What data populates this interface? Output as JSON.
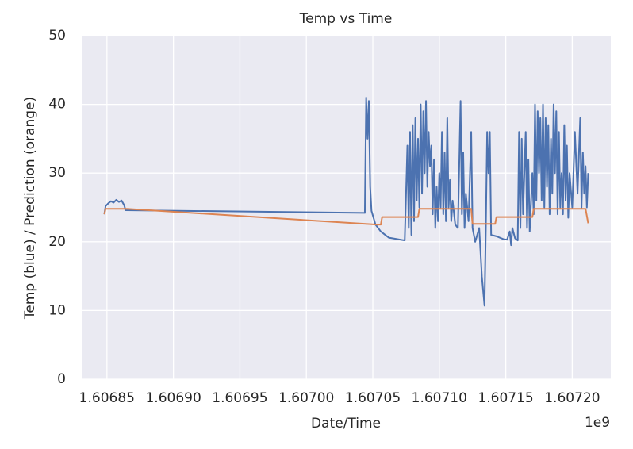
{
  "chart_data": {
    "type": "line",
    "title": "Temp vs Time",
    "xlabel": "Date/Time",
    "ylabel": "Temp (blue) / Prediction (orange)",
    "x_offset_label": "1e9",
    "xlim": [
      1.606831,
      1.607229
    ],
    "ylim": [
      0,
      50
    ],
    "xticks": [
      1.60685,
      {
        "value": 1.6069,
        "label": "1.60690"
      },
      1.60695,
      {
        "value": 1.607,
        "label": "1.60700"
      },
      1.60705,
      {
        "value": 1.6071,
        "label": "1.60710"
      },
      1.60715,
      {
        "value": 1.6072,
        "label": "1.60720"
      }
    ],
    "yticks": [
      0,
      10,
      20,
      30,
      40,
      50
    ],
    "grid": true,
    "series": [
      {
        "color": "#4c72b0",
        "x": [
          1.606848,
          1.606849,
          1.606851,
          1.606853,
          1.606855,
          1.606857,
          1.606859,
          1.606861,
          1.606863,
          1.606864,
          1.607044,
          1.607045,
          1.607046,
          1.607047,
          1.607048,
          1.607049,
          1.607052,
          1.607056,
          1.607062,
          1.607074,
          1.607076,
          1.607077,
          1.607078,
          1.607079,
          1.60708,
          1.607081,
          1.607082,
          1.607083,
          1.607084,
          1.607085,
          1.607086,
          1.607087,
          1.607088,
          1.607089,
          1.60709,
          1.607091,
          1.607092,
          1.607093,
          1.607094,
          1.607095,
          1.607096,
          1.607097,
          1.607098,
          1.607099,
          1.6071,
          1.607101,
          1.607102,
          1.607103,
          1.607104,
          1.607105,
          1.607106,
          1.607107,
          1.607108,
          1.607109,
          1.60711,
          1.607112,
          1.607114,
          1.607116,
          1.607117,
          1.607118,
          1.607119,
          1.60712,
          1.607122,
          1.607124,
          1.607125,
          1.607127,
          1.60713,
          1.607132,
          1.607134,
          1.607135,
          1.607136,
          1.607137,
          1.607138,
          1.607139,
          1.607143,
          1.607148,
          1.607151,
          1.607153,
          1.607154,
          1.607155,
          1.607157,
          1.607159,
          1.60716,
          1.607161,
          1.607162,
          1.607163,
          1.607165,
          1.607166,
          1.607167,
          1.607168,
          1.60717,
          1.607171,
          1.607172,
          1.607173,
          1.607174,
          1.607175,
          1.607176,
          1.607177,
          1.607178,
          1.607179,
          1.60718,
          1.607181,
          1.607182,
          1.607183,
          1.607184,
          1.607185,
          1.607186,
          1.607187,
          1.607188,
          1.607189,
          1.60719,
          1.607191,
          1.607192,
          1.607193,
          1.607194,
          1.607195,
          1.607196,
          1.607197,
          1.607198,
          1.6072,
          1.607202,
          1.607204,
          1.607206,
          1.607207,
          1.607208,
          1.607209,
          1.60721,
          1.607211,
          1.607212
        ],
        "values": [
          24.0,
          25.2,
          25.6,
          25.9,
          25.7,
          26.1,
          25.8,
          26.0,
          25.3,
          24.6,
          24.2,
          41.0,
          35,
          40.5,
          28,
          24.5,
          22.5,
          21.5,
          20.6,
          20.2,
          34,
          22,
          36,
          21,
          37,
          23,
          38,
          26,
          35,
          25,
          40,
          27,
          39,
          30,
          40.5,
          28,
          36,
          31,
          34,
          24,
          32,
          22,
          28,
          23,
          30,
          25,
          36,
          24,
          33,
          23,
          38,
          25,
          29,
          23,
          26,
          22.5,
          22,
          40.5,
          24,
          33,
          22,
          27,
          23,
          36,
          22,
          20,
          22,
          15,
          10.7,
          22,
          36,
          30,
          36,
          21,
          20.8,
          20.4,
          20.3,
          21.5,
          19.5,
          22,
          20.5,
          20.2,
          36,
          22,
          35,
          24,
          36,
          22,
          32,
          21.5,
          30,
          24,
          40,
          26,
          39,
          30,
          38,
          26,
          40,
          25,
          38,
          28,
          37,
          24,
          35,
          27,
          40,
          30,
          39,
          24,
          36,
          25,
          30,
          24,
          37,
          26,
          34,
          23.5,
          30,
          25,
          36,
          27,
          38,
          25,
          33,
          27,
          31,
          25,
          30
        ]
      },
      {
        "color": "#dd8452",
        "x": [
          1.606848,
          1.606849,
          1.606865,
          1.607053,
          1.607056,
          1.607057,
          1.607084,
          1.607085,
          1.607124,
          1.607125,
          1.607142,
          1.607143,
          1.60717,
          1.607171,
          1.60721,
          1.607212
        ],
        "values": [
          24.0,
          24.8,
          24.8,
          22.5,
          22.5,
          23.6,
          23.6,
          24.8,
          24.8,
          22.6,
          22.6,
          23.6,
          23.6,
          24.8,
          24.8,
          22.7
        ]
      }
    ]
  }
}
